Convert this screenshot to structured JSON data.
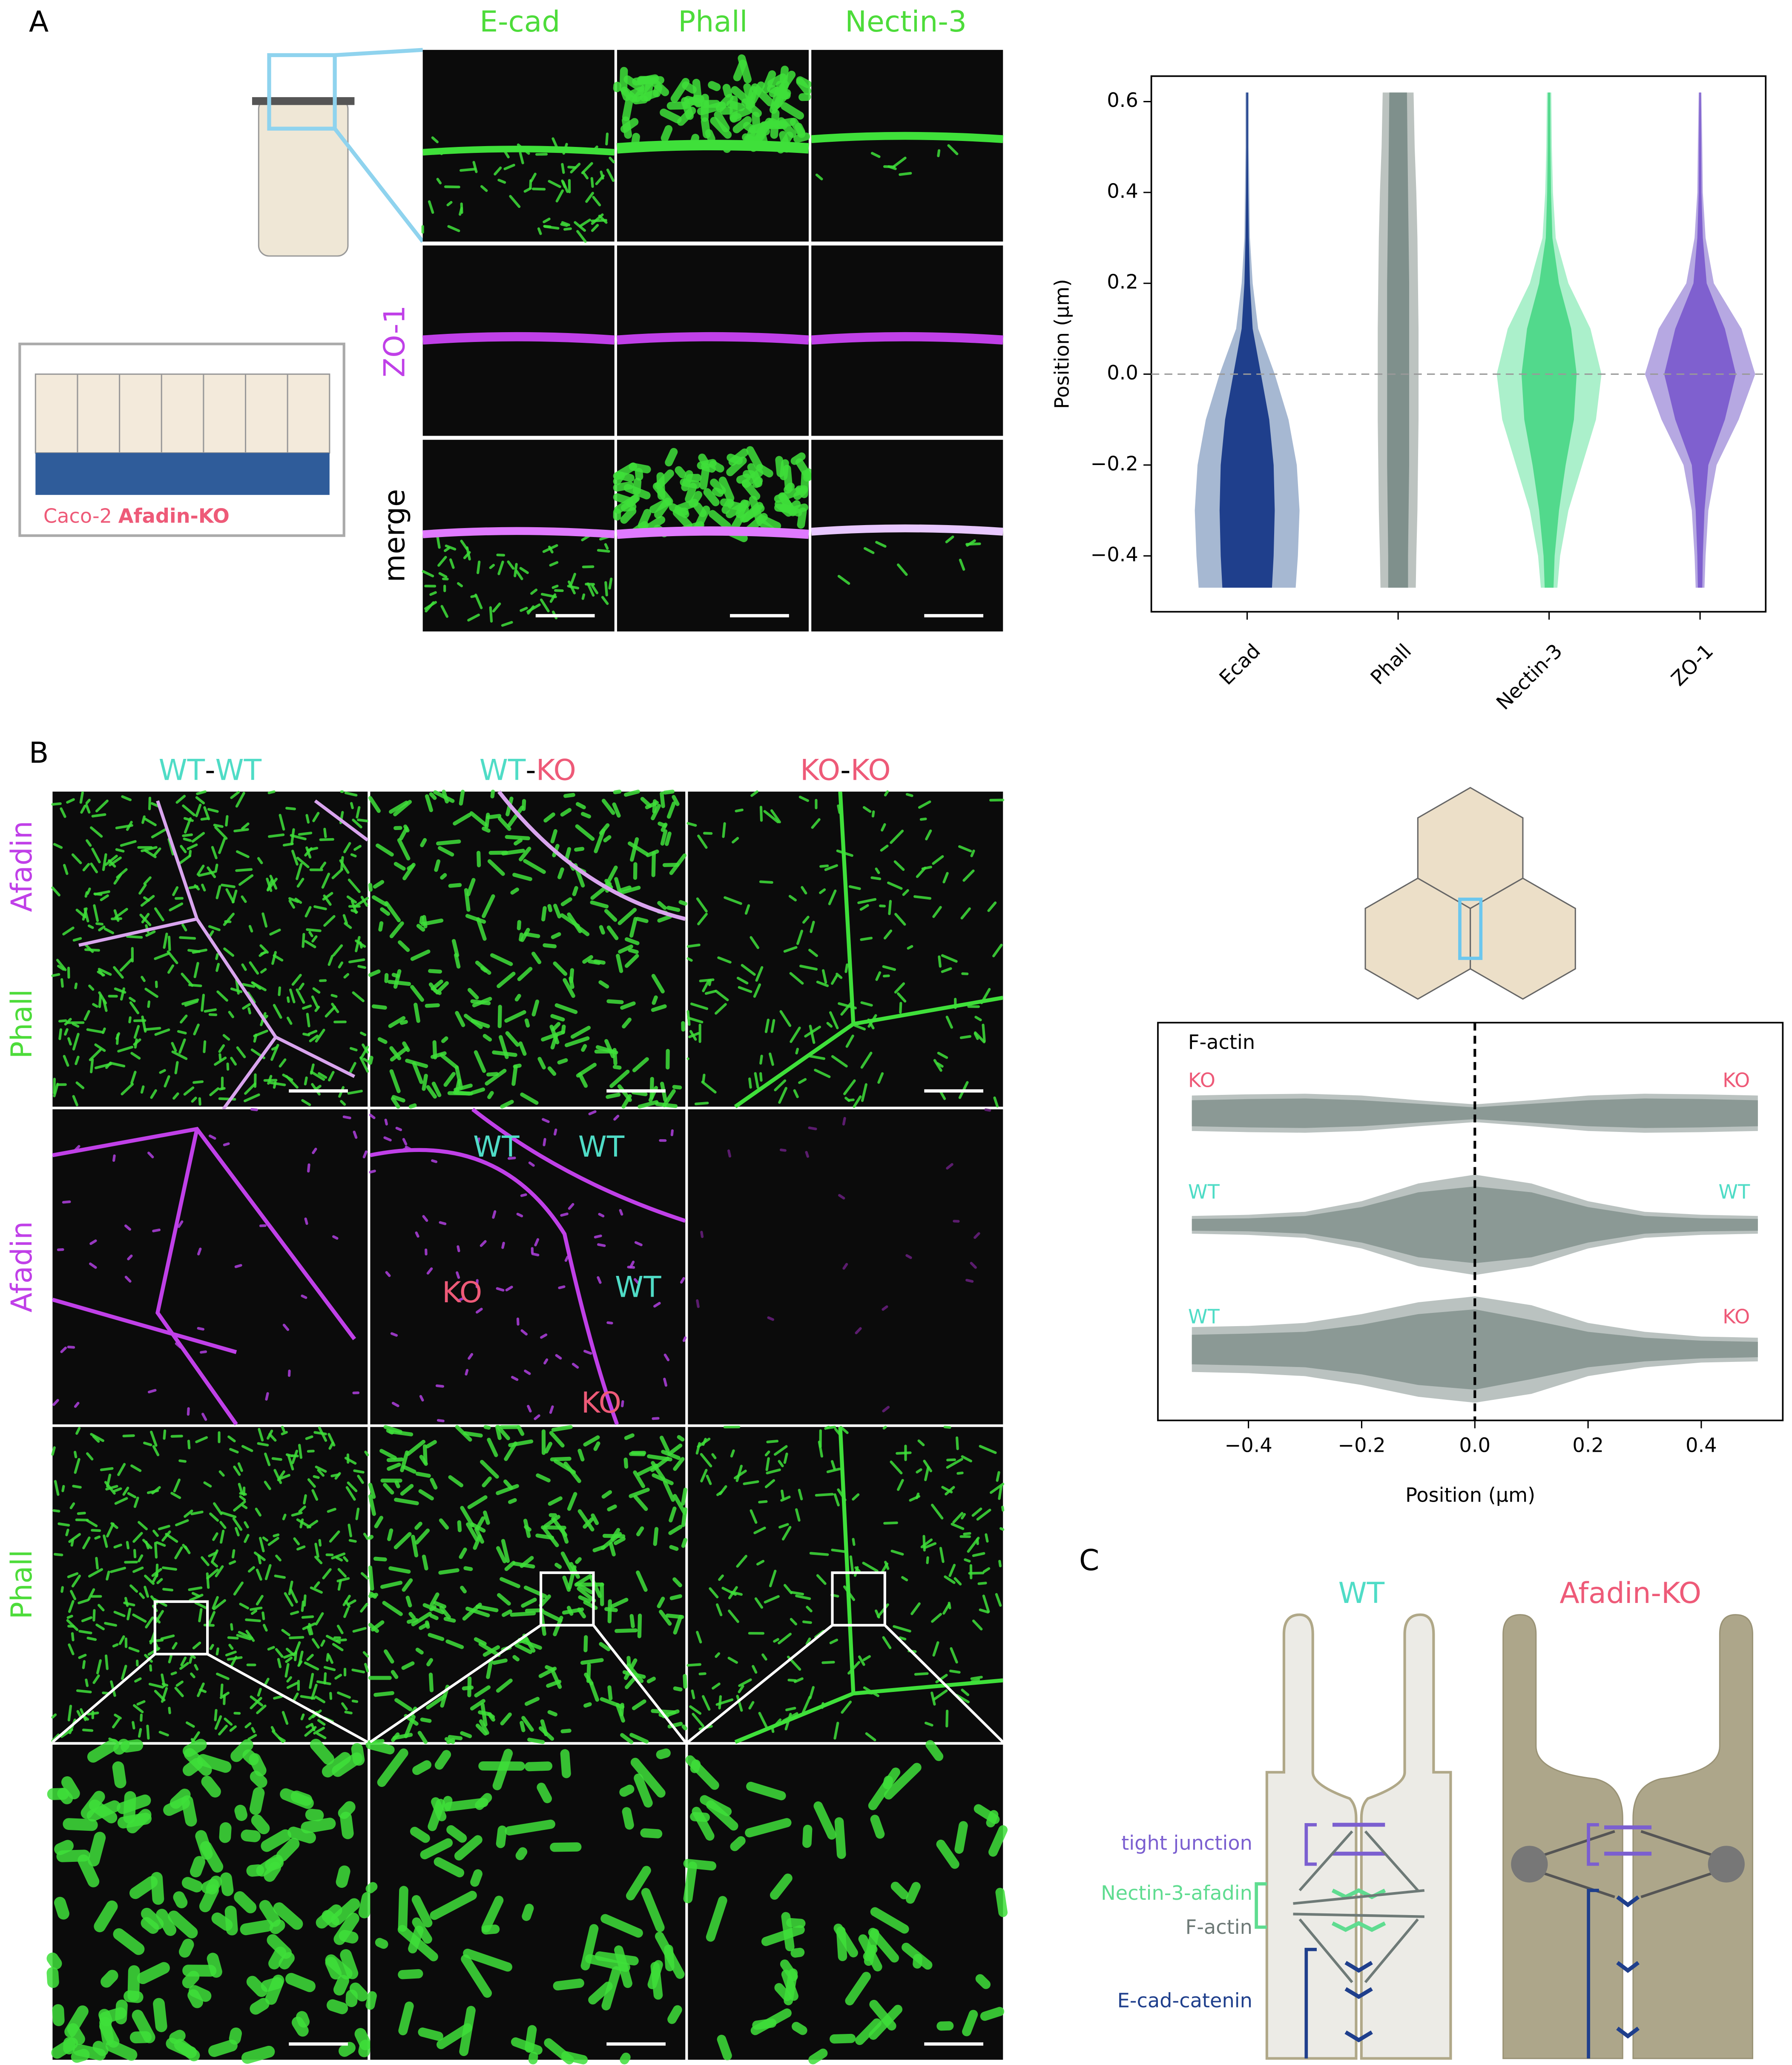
{
  "panel_labels": [
    "A",
    "B",
    "C"
  ],
  "label_colors": {
    "WT": "#4fdcc6",
    "KO": "#ee5a78"
  },
  "panel_a": {
    "columns": [
      "E-cad",
      "Phall",
      "Nectin-3"
    ],
    "rows": [
      "ZO-1",
      "merge"
    ],
    "schematic": {
      "line": "Caco-2",
      "highlight": "Afadin-KO"
    }
  },
  "panel_b": {
    "columns": [
      [
        "WT",
        "-",
        "WT"
      ],
      [
        "WT",
        "-",
        "KO"
      ],
      [
        "KO",
        "-",
        "KO"
      ]
    ],
    "row_labels": [
      [
        "Afadin",
        "Phall"
      ],
      [
        "Afadin"
      ],
      [
        "Phall"
      ]
    ],
    "image_labels": [
      "WT",
      "WT",
      "KO",
      "WT",
      "KO"
    ]
  },
  "panel_c": {
    "titles": [
      "WT",
      "Afadin-KO"
    ],
    "labels": [
      "tight junction",
      "Nectin-3-afadin",
      "F-actin",
      "E-cad-catenin"
    ]
  },
  "chart_data": [
    {
      "type": "violin",
      "ylabel": "Position (µm)",
      "categories": [
        "Ecad",
        "Phall",
        "Nectin-3",
        "ZO-1"
      ],
      "positions": [
        -0.47,
        -0.4,
        -0.3,
        -0.2,
        -0.1,
        0,
        0.1,
        0.2,
        0.3,
        0.4,
        0.5,
        0.62
      ],
      "series": [
        {
          "outer": [
            0.88,
            0.92,
            0.95,
            0.9,
            0.75,
            0.5,
            0.2,
            0.1,
            0.05,
            0.04,
            0.03,
            0.03
          ],
          "inner": [
            0.45,
            0.48,
            0.5,
            0.48,
            0.4,
            0.25,
            0.1,
            0.05,
            0.03,
            0.02,
            0.015,
            0.015
          ],
          "outer_color": "#a6b8d2",
          "inner_color": "#1f3f8c"
        },
        {
          "outer": [
            0.32,
            0.33,
            0.35,
            0.36,
            0.37,
            0.37,
            0.37,
            0.36,
            0.35,
            0.33,
            0.3,
            0.28
          ],
          "inner": [
            0.18,
            0.18,
            0.19,
            0.2,
            0.2,
            0.2,
            0.2,
            0.2,
            0.19,
            0.18,
            0.17,
            0.16
          ],
          "outer_color": "#bcc3c0",
          "inner_color": "#7f908c"
        },
        {
          "outer": [
            0.15,
            0.2,
            0.35,
            0.6,
            0.85,
            0.95,
            0.75,
            0.35,
            0.12,
            0.07,
            0.05,
            0.04
          ],
          "inner": [
            0.08,
            0.1,
            0.18,
            0.3,
            0.45,
            0.5,
            0.4,
            0.18,
            0.06,
            0.035,
            0.025,
            0.02
          ],
          "outer_color": "#abf0cb",
          "inner_color": "#52d98c"
        },
        {
          "outer": [
            0.08,
            0.1,
            0.15,
            0.3,
            0.7,
            1.0,
            0.75,
            0.25,
            0.1,
            0.05,
            0.04,
            0.025
          ],
          "inner": [
            0.04,
            0.05,
            0.08,
            0.15,
            0.45,
            0.65,
            0.45,
            0.12,
            0.05,
            0.025,
            0.02,
            0.012
          ],
          "outer_color": "#b6a8e2",
          "inner_color": "#7f60cf"
        }
      ],
      "ylim": [
        -0.523,
        0.656
      ],
      "yticks": [
        {
          "value": -0.4,
          "label": "−0.4"
        },
        {
          "value": -0.2,
          "label": "−0.2"
        },
        {
          "value": 0,
          "label": "0.0"
        },
        0.2,
        0.4,
        0.6
      ],
      "reference_line": 0
    },
    {
      "type": "horizontal_violin",
      "title": "F-actin",
      "xlabel": "Position (µm)",
      "positions": [
        -0.5,
        -0.4,
        -0.3,
        -0.2,
        -0.1,
        0,
        0.1,
        0.2,
        0.3,
        0.4,
        0.5
      ],
      "rows": [
        {
          "left": "KO",
          "right": "KO",
          "outer": [
            0.3,
            0.32,
            0.33,
            0.3,
            0.22,
            0.15,
            0.22,
            0.3,
            0.33,
            0.32,
            0.3
          ],
          "inner": [
            0.22,
            0.24,
            0.25,
            0.22,
            0.16,
            0.1,
            0.16,
            0.22,
            0.25,
            0.24,
            0.22
          ]
        },
        {
          "left": "WT",
          "right": "WT",
          "outer": [
            0.15,
            0.17,
            0.22,
            0.4,
            0.7,
            0.85,
            0.7,
            0.4,
            0.22,
            0.17,
            0.15
          ],
          "inner": [
            0.1,
            0.11,
            0.15,
            0.3,
            0.55,
            0.65,
            0.55,
            0.3,
            0.15,
            0.11,
            0.1
          ]
        },
        {
          "left": "WT",
          "right": "KO",
          "outer": [
            0.38,
            0.4,
            0.45,
            0.6,
            0.8,
            0.9,
            0.75,
            0.45,
            0.3,
            0.22,
            0.2
          ],
          "inner": [
            0.25,
            0.27,
            0.3,
            0.42,
            0.6,
            0.68,
            0.5,
            0.3,
            0.2,
            0.15,
            0.13
          ]
        }
      ],
      "outer_color": "#bac2c0",
      "inner_color": "#8b9995",
      "xlim": [
        -0.56,
        0.544
      ],
      "xticks": [
        {
          "value": -0.4,
          "label": "−0.4"
        },
        {
          "value": -0.2,
          "label": "−0.2"
        },
        {
          "value": 0,
          "label": "0.0"
        },
        0.2,
        0.4
      ],
      "reference_line": 0
    }
  ]
}
